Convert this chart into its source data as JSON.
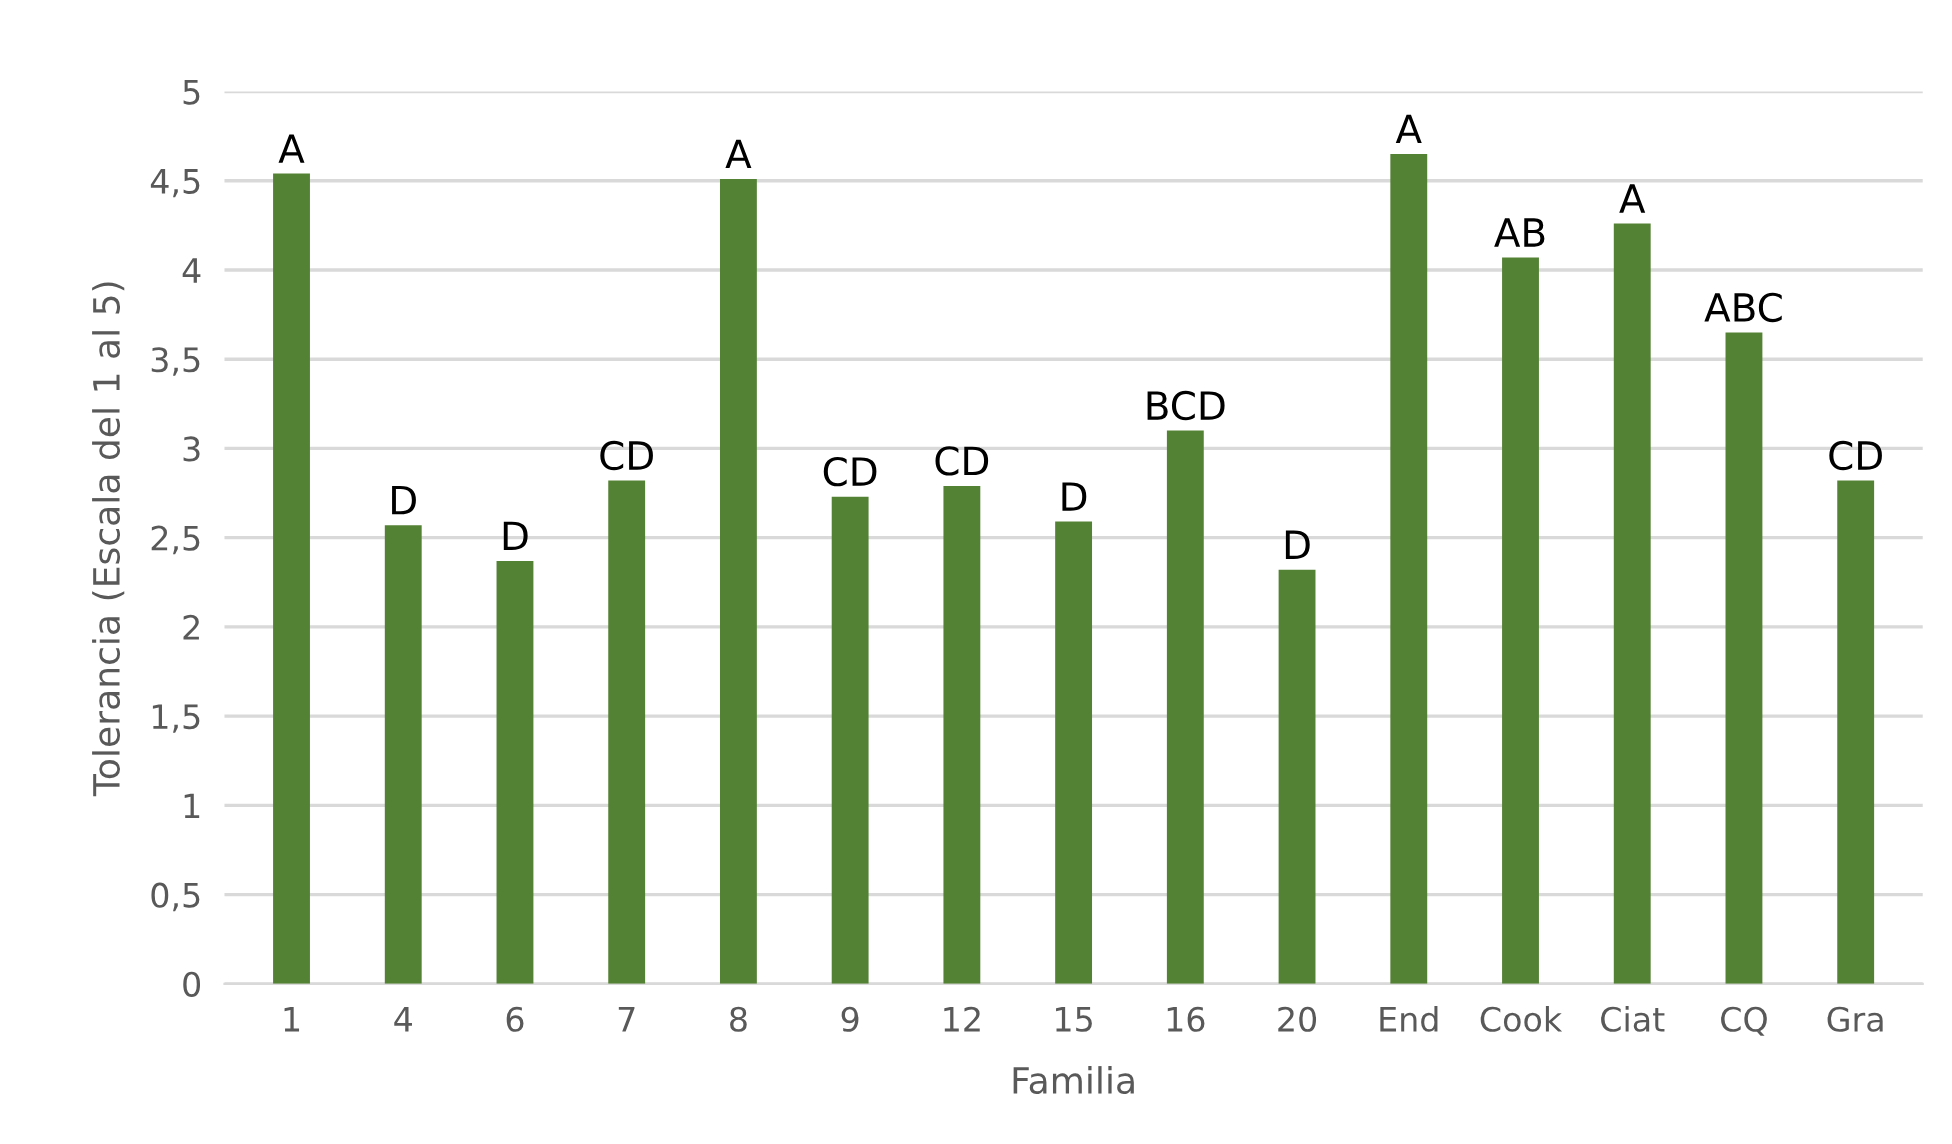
{
  "chart_data": {
    "type": "bar",
    "xlabel": "Familia",
    "ylabel": "Tolerancia (Escala del 1 al 5)",
    "categories": [
      "1",
      "4",
      "6",
      "7",
      "8",
      "9",
      "12",
      "15",
      "16",
      "20",
      "End",
      "Cook",
      "Ciat",
      "CQ",
      "Gra"
    ],
    "values": [
      4.54,
      2.57,
      2.37,
      2.82,
      4.51,
      2.73,
      2.79,
      2.59,
      3.1,
      2.32,
      4.65,
      4.07,
      4.26,
      3.65,
      2.82
    ],
    "color": "#548235",
    "ylim": [
      0,
      5
    ],
    "yticks": [
      0,
      {
        "value": 0.5,
        "label": "0,5"
      },
      1,
      {
        "value": 1.5,
        "label": "1,5"
      },
      2,
      {
        "value": 2.5,
        "label": "2,5"
      },
      3,
      {
        "value": 3.5,
        "label": "3,5"
      },
      4,
      {
        "value": 4.5,
        "label": "4,5"
      },
      5
    ],
    "grid": "y",
    "annotations": [
      {
        "text": "A",
        "x": "1",
        "y": 4.54
      },
      {
        "text": "D",
        "x": "4",
        "y": 2.57
      },
      {
        "text": "D",
        "x": "6",
        "y": 2.37
      },
      {
        "text": "CD",
        "x": "7",
        "y": 2.82
      },
      {
        "text": "A",
        "x": "8",
        "y": 4.51
      },
      {
        "text": "CD",
        "x": "9",
        "y": 2.73
      },
      {
        "text": "CD",
        "x": "12",
        "y": 2.79
      },
      {
        "text": "D",
        "x": "15",
        "y": 2.59
      },
      {
        "text": "BCD",
        "x": "16",
        "y": 3.1
      },
      {
        "text": "D",
        "x": "20",
        "y": 2.32
      },
      {
        "text": "A",
        "x": "End",
        "y": 4.65
      },
      {
        "text": "AB",
        "x": "Cook",
        "y": 4.07
      },
      {
        "text": "A",
        "x": "Ciat",
        "y": 4.26
      },
      {
        "text": "ABC",
        "x": "CQ",
        "y": 3.65
      },
      {
        "text": "CD",
        "x": "Gra",
        "y": 2.82
      }
    ]
  }
}
